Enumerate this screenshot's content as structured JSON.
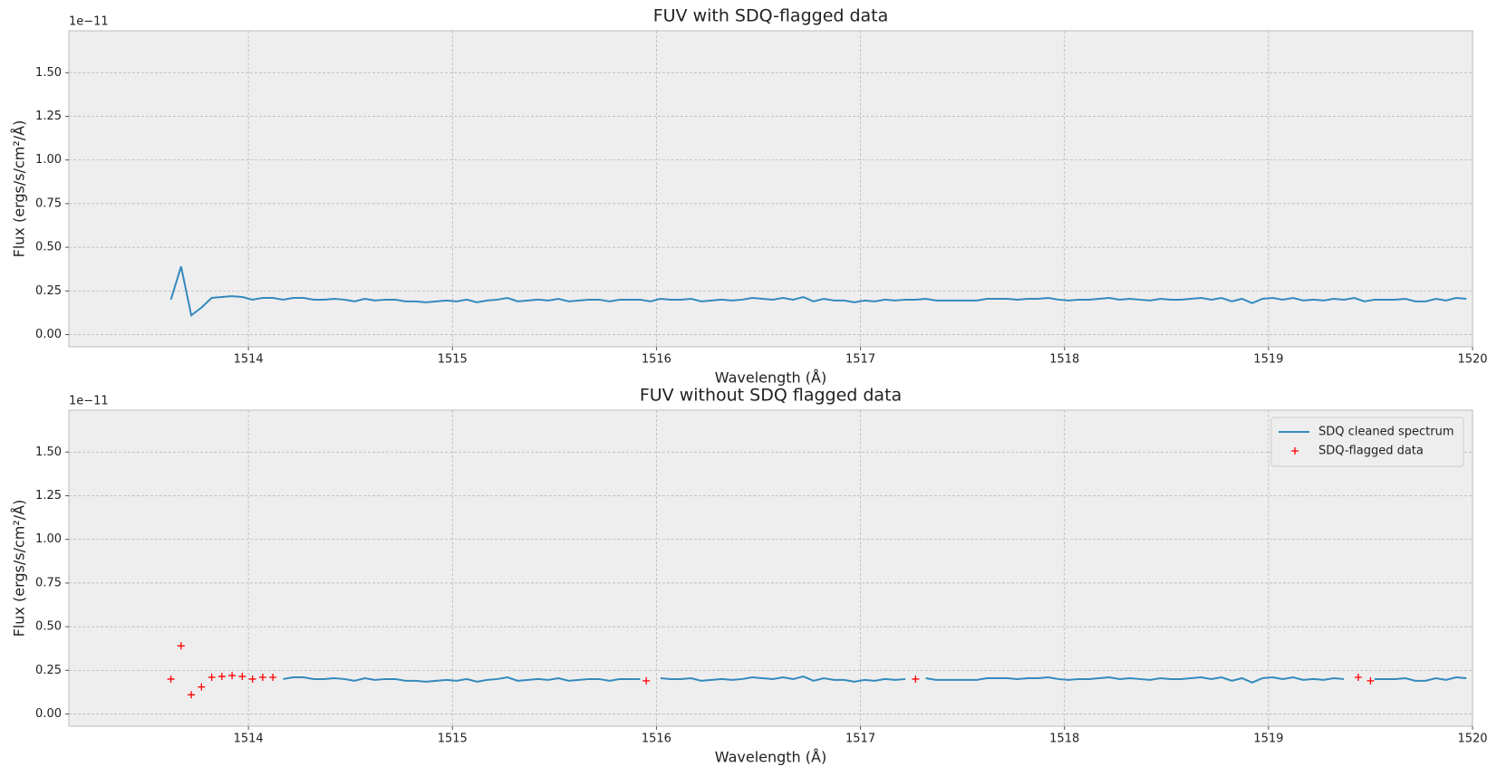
{
  "chart_data": [
    {
      "type": "line",
      "title": "FUV with SDQ-flagged data",
      "xlabel": "Wavelength (Å)",
      "ylabel": "Flux (ergs/s/cm²/Å)",
      "y_offset_label": "1e−11",
      "xlim": [
        1513.12,
        1520
      ],
      "ylim": [
        -0.07,
        1.74
      ],
      "xticks": [
        1514,
        1515,
        1516,
        1517,
        1518,
        1519,
        1520
      ],
      "yticks": [
        {
          "value": 0,
          "label": "0.00"
        },
        {
          "value": 0.25,
          "label": "0.25"
        },
        {
          "value": 0.5,
          "label": "0.50"
        },
        {
          "value": 0.75,
          "label": "0.75"
        },
        {
          "value": 1,
          "label": "1.00"
        },
        {
          "value": 1.25,
          "label": "1.25"
        },
        {
          "value": 1.5,
          "label": "1.50"
        }
      ],
      "grid": true,
      "x": [
        1513.62,
        1513.67,
        1513.72,
        1513.77,
        1513.82,
        1513.87,
        1513.92,
        1513.97,
        1514.02,
        1514.07,
        1514.12,
        1514.17,
        1514.22,
        1514.27,
        1514.32,
        1514.37,
        1514.42,
        1514.47,
        1514.52,
        1514.57,
        1514.62,
        1514.67,
        1514.72,
        1514.77,
        1514.82,
        1514.87,
        1514.92,
        1514.97,
        1515.02,
        1515.07,
        1515.12,
        1515.17,
        1515.22,
        1515.27,
        1515.32,
        1515.37,
        1515.42,
        1515.47,
        1515.52,
        1515.57,
        1515.62,
        1515.67,
        1515.72,
        1515.77,
        1515.82,
        1515.87,
        1515.92,
        1515.97,
        1516.02,
        1516.07,
        1516.12,
        1516.17,
        1516.22,
        1516.27,
        1516.32,
        1516.37,
        1516.42,
        1516.47,
        1516.52,
        1516.57,
        1516.62,
        1516.67,
        1516.72,
        1516.77,
        1516.82,
        1516.87,
        1516.92,
        1516.97,
        1517.02,
        1517.07,
        1517.12,
        1517.17,
        1517.22,
        1517.27,
        1517.32,
        1517.37,
        1517.42,
        1517.47,
        1517.52,
        1517.57,
        1517.62,
        1517.67,
        1517.72,
        1517.77,
        1517.82,
        1517.87,
        1517.92,
        1517.97,
        1518.02,
        1518.07,
        1518.12,
        1518.17,
        1518.22,
        1518.27,
        1518.32,
        1518.37,
        1518.42,
        1518.47,
        1518.52,
        1518.57,
        1518.62,
        1518.67,
        1518.72,
        1518.77,
        1518.82,
        1518.87,
        1518.92,
        1518.97,
        1519.02,
        1519.07,
        1519.12,
        1519.17,
        1519.22,
        1519.27,
        1519.32,
        1519.37,
        1519.42,
        1519.47,
        1519.52,
        1519.57,
        1519.62,
        1519.67,
        1519.72,
        1519.77,
        1519.82,
        1519.87,
        1519.92,
        1519.97
      ],
      "series": [
        {
          "color": "#348abd",
          "values": [
            0.2,
            0.39,
            0.11,
            0.155,
            0.21,
            0.215,
            0.22,
            0.215,
            0.2,
            0.21,
            0.21,
            0.2,
            0.21,
            0.21,
            0.2,
            0.2,
            0.205,
            0.2,
            0.19,
            0.205,
            0.195,
            0.2,
            0.2,
            0.19,
            0.19,
            0.185,
            0.19,
            0.195,
            0.19,
            0.2,
            0.185,
            0.195,
            0.2,
            0.21,
            0.19,
            0.195,
            0.2,
            0.195,
            0.205,
            0.19,
            0.195,
            0.2,
            0.2,
            0.19,
            0.2,
            0.2,
            0.2,
            0.19,
            0.205,
            0.2,
            0.2,
            0.205,
            0.19,
            0.195,
            0.2,
            0.195,
            0.2,
            0.21,
            0.205,
            0.2,
            0.21,
            0.2,
            0.215,
            0.19,
            0.205,
            0.195,
            0.195,
            0.185,
            0.195,
            0.19,
            0.2,
            0.195,
            0.2,
            0.2,
            0.205,
            0.195,
            0.195,
            0.195,
            0.195,
            0.195,
            0.205,
            0.205,
            0.205,
            0.2,
            0.205,
            0.205,
            0.21,
            0.2,
            0.195,
            0.2,
            0.2,
            0.205,
            0.21,
            0.2,
            0.205,
            0.2,
            0.195,
            0.205,
            0.2,
            0.2,
            0.205,
            0.21,
            0.2,
            0.21,
            0.19,
            0.205,
            0.18,
            0.205,
            0.21,
            0.2,
            0.21,
            0.195,
            0.2,
            0.195,
            0.205,
            0.2,
            0.21,
            0.19,
            0.2,
            0.2,
            0.2,
            0.205,
            0.19,
            0.19,
            0.205,
            0.195,
            0.21,
            0.205
          ]
        }
      ]
    },
    {
      "type": "line",
      "title": "FUV without SDQ flagged data",
      "xlabel": "Wavelength (Å)",
      "ylabel": "Flux (ergs/s/cm²/Å)",
      "y_offset_label": "1e−11",
      "xlim": [
        1513.12,
        1520
      ],
      "ylim": [
        -0.07,
        1.74
      ],
      "xticks": [
        1514,
        1515,
        1516,
        1517,
        1518,
        1519,
        1520
      ],
      "yticks": [
        {
          "value": 0,
          "label": "0.00"
        },
        {
          "value": 0.25,
          "label": "0.25"
        },
        {
          "value": 0.5,
          "label": "0.50"
        },
        {
          "value": 0.75,
          "label": "0.75"
        },
        {
          "value": 1,
          "label": "1.00"
        },
        {
          "value": 1.25,
          "label": "1.25"
        },
        {
          "value": 1.5,
          "label": "1.50"
        }
      ],
      "grid": true,
      "legend": "upper right",
      "x": [
        1513.62,
        1513.67,
        1513.72,
        1513.77,
        1513.82,
        1513.87,
        1513.92,
        1513.97,
        1514.02,
        1514.07,
        1514.12,
        1514.17,
        1514.22,
        1514.27,
        1514.32,
        1514.37,
        1514.42,
        1514.47,
        1514.52,
        1514.57,
        1514.62,
        1514.67,
        1514.72,
        1514.77,
        1514.82,
        1514.87,
        1514.92,
        1514.97,
        1515.02,
        1515.07,
        1515.12,
        1515.17,
        1515.22,
        1515.27,
        1515.32,
        1515.37,
        1515.42,
        1515.47,
        1515.52,
        1515.57,
        1515.62,
        1515.67,
        1515.72,
        1515.77,
        1515.82,
        1515.87,
        1515.92,
        1515.97,
        1516.02,
        1516.07,
        1516.12,
        1516.17,
        1516.22,
        1516.27,
        1516.32,
        1516.37,
        1516.42,
        1516.47,
        1516.52,
        1516.57,
        1516.62,
        1516.67,
        1516.72,
        1516.77,
        1516.82,
        1516.87,
        1516.92,
        1516.97,
        1517.02,
        1517.07,
        1517.12,
        1517.17,
        1517.22,
        1517.27,
        1517.32,
        1517.37,
        1517.42,
        1517.47,
        1517.52,
        1517.57,
        1517.62,
        1517.67,
        1517.72,
        1517.77,
        1517.82,
        1517.87,
        1517.92,
        1517.97,
        1518.02,
        1518.07,
        1518.12,
        1518.17,
        1518.22,
        1518.27,
        1518.32,
        1518.37,
        1518.42,
        1518.47,
        1518.52,
        1518.57,
        1518.62,
        1518.67,
        1518.72,
        1518.77,
        1518.82,
        1518.87,
        1518.92,
        1518.97,
        1519.02,
        1519.07,
        1519.12,
        1519.17,
        1519.22,
        1519.27,
        1519.32,
        1519.37,
        1519.42,
        1519.47,
        1519.52,
        1519.57,
        1519.62,
        1519.67,
        1519.72,
        1519.77,
        1519.82,
        1519.87,
        1519.92,
        1519.97
      ],
      "series": [
        {
          "name": "SDQ cleaned spectrum",
          "color": "#348abd",
          "values": [
            null,
            null,
            null,
            null,
            null,
            null,
            null,
            null,
            null,
            null,
            null,
            0.2,
            0.21,
            0.21,
            0.2,
            0.2,
            0.205,
            0.2,
            0.19,
            0.205,
            0.195,
            0.2,
            0.2,
            0.19,
            0.19,
            0.185,
            0.19,
            0.195,
            0.19,
            0.2,
            0.185,
            0.195,
            0.2,
            0.21,
            0.19,
            0.195,
            0.2,
            0.195,
            0.205,
            0.19,
            0.195,
            0.2,
            0.2,
            0.19,
            0.2,
            0.2,
            0.2,
            null,
            0.205,
            0.2,
            0.2,
            0.205,
            0.19,
            0.195,
            0.2,
            0.195,
            0.2,
            0.21,
            0.205,
            0.2,
            0.21,
            0.2,
            0.215,
            0.19,
            0.205,
            0.195,
            0.195,
            0.185,
            0.195,
            0.19,
            0.2,
            0.195,
            0.2,
            null,
            0.205,
            0.195,
            0.195,
            0.195,
            0.195,
            0.195,
            0.205,
            0.205,
            0.205,
            0.2,
            0.205,
            0.205,
            0.21,
            0.2,
            0.195,
            0.2,
            0.2,
            0.205,
            0.21,
            0.2,
            0.205,
            0.2,
            0.195,
            0.205,
            0.2,
            0.2,
            0.205,
            0.21,
            0.2,
            0.21,
            0.19,
            0.205,
            0.18,
            0.205,
            0.21,
            0.2,
            0.21,
            0.195,
            0.2,
            0.195,
            0.205,
            0.2,
            null,
            null,
            0.2,
            0.2,
            0.2,
            0.205,
            0.19,
            0.19,
            0.205,
            0.195,
            0.21,
            0.205
          ]
        },
        {
          "name": "SDQ-flagged data",
          "type": "scatter",
          "marker": "+",
          "color": "red",
          "x": [
            1513.62,
            1513.67,
            1513.72,
            1513.77,
            1513.82,
            1513.87,
            1513.92,
            1513.97,
            1514.02,
            1514.07,
            1514.12,
            1515.95,
            1517.27,
            1519.44,
            1519.5
          ],
          "values": [
            0.2,
            0.39,
            0.11,
            0.155,
            0.21,
            0.215,
            0.22,
            0.215,
            0.2,
            0.21,
            0.21,
            0.19,
            0.2,
            0.21,
            0.19
          ]
        }
      ]
    }
  ]
}
